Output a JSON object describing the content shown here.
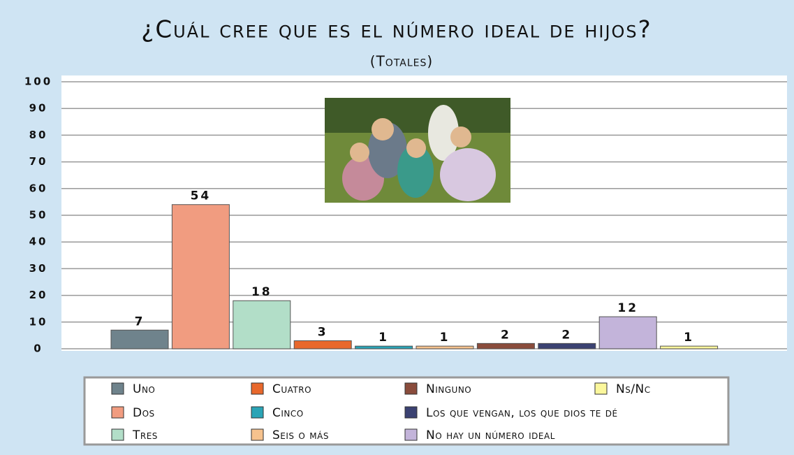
{
  "chart_data": {
    "type": "bar",
    "title": "¿Cuál cree que es el número ideal de hijos?",
    "subtitle": "(Totales)",
    "categories": [
      "Uno",
      "Dos",
      "Tres",
      "Cuatro",
      "Cinco",
      "Seis o más",
      "Ninguno",
      "Los que vengan, los que dios te dé",
      "No hay un número ideal",
      "Ns/Nc"
    ],
    "values": [
      7,
      54,
      18,
      3,
      1,
      1,
      2,
      2,
      12,
      1
    ],
    "colors": [
      "#6f838c",
      "#f19c80",
      "#b2dec8",
      "#e8682c",
      "#2aa4b6",
      "#f6c28e",
      "#8a4c3c",
      "#3b4272",
      "#c3b4da",
      "#fbf79c"
    ],
    "ylim": [
      0,
      100
    ],
    "yticks": [
      0,
      10,
      20,
      30,
      40,
      50,
      60,
      70,
      80,
      90,
      100
    ],
    "grid": true
  }
}
